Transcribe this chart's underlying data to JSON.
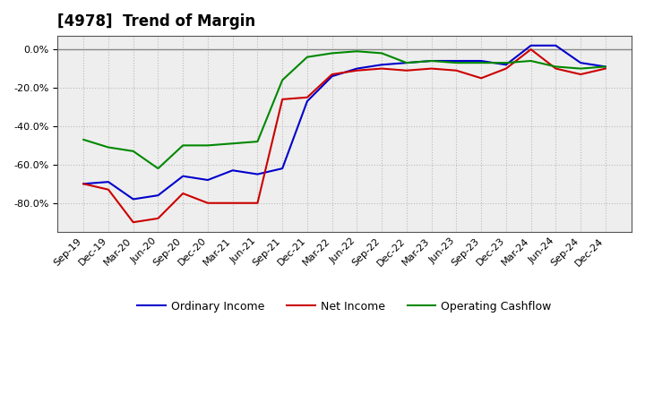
{
  "title": "[4978]  Trend of Margin",
  "x_labels": [
    "Sep-19",
    "Dec-19",
    "Mar-20",
    "Jun-20",
    "Sep-20",
    "Dec-20",
    "Mar-21",
    "Jun-21",
    "Sep-21",
    "Dec-21",
    "Mar-22",
    "Jun-22",
    "Sep-22",
    "Dec-22",
    "Mar-23",
    "Jun-23",
    "Sep-23",
    "Dec-23",
    "Mar-24",
    "Jun-24",
    "Sep-24",
    "Dec-24"
  ],
  "ordinary_income": [
    -0.7,
    -0.69,
    -0.78,
    -0.76,
    -0.66,
    -0.68,
    -0.63,
    -0.65,
    -0.62,
    -0.27,
    -0.14,
    -0.1,
    -0.08,
    -0.07,
    -0.06,
    -0.06,
    -0.06,
    -0.08,
    0.02,
    0.02,
    -0.07,
    -0.09
  ],
  "net_income": [
    -0.7,
    -0.73,
    -0.9,
    -0.88,
    -0.75,
    -0.8,
    -0.8,
    -0.8,
    -0.26,
    -0.25,
    -0.13,
    -0.11,
    -0.1,
    -0.11,
    -0.1,
    -0.11,
    -0.15,
    -0.1,
    0.0,
    -0.1,
    -0.13,
    -0.1
  ],
  "operating_cashflow": [
    -0.47,
    -0.51,
    -0.53,
    -0.62,
    -0.5,
    -0.5,
    -0.49,
    -0.48,
    -0.16,
    -0.04,
    -0.02,
    -0.01,
    -0.02,
    -0.07,
    -0.06,
    -0.07,
    -0.07,
    -0.07,
    -0.06,
    -0.09,
    -0.1,
    -0.09
  ],
  "ylim": [
    -0.95,
    0.07
  ],
  "yticks": [
    0.0,
    -0.2,
    -0.4,
    -0.6,
    -0.8
  ],
  "line_color_ordinary": "#0000cc",
  "line_color_net": "#cc0000",
  "line_color_cashflow": "#008800",
  "bg_color": "#ffffff",
  "plot_bg_color": "#eeeeee",
  "grid_color": "#bbbbbb",
  "title_fontsize": 12,
  "label_fontsize": 8,
  "legend_fontsize": 9,
  "linewidth": 1.5
}
